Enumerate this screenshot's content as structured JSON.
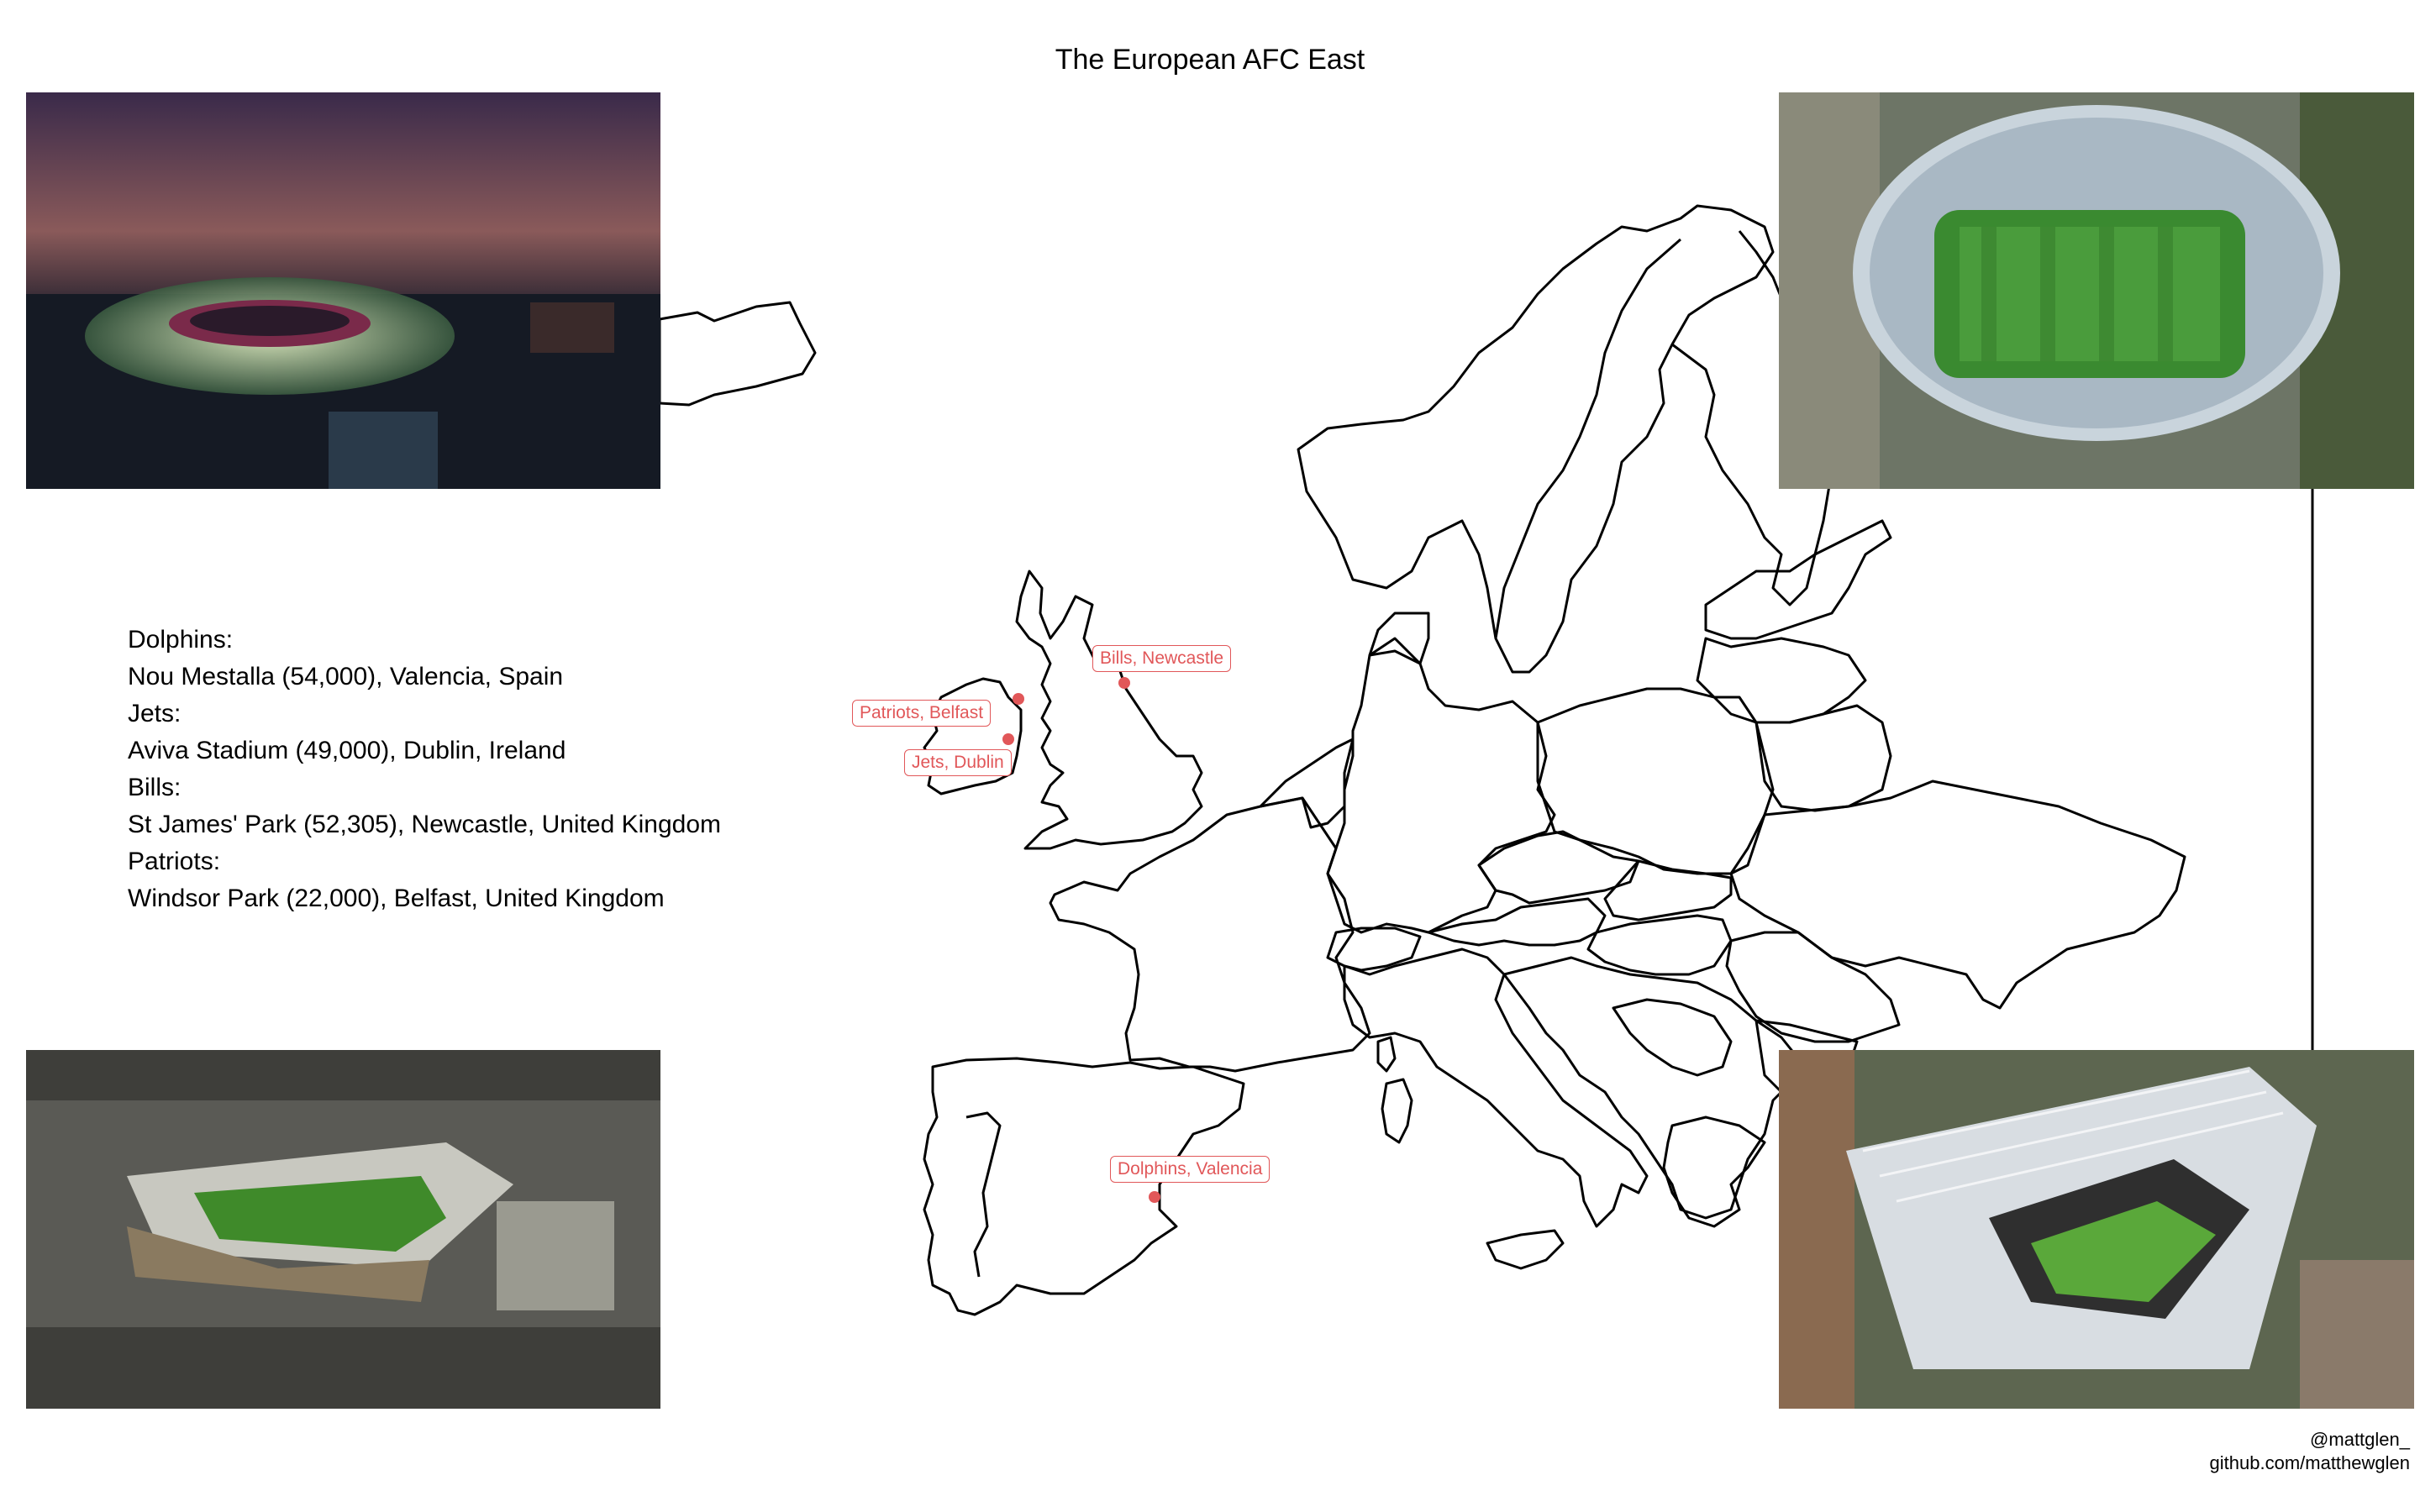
{
  "title": "The European AFC East",
  "stadiums": [
    {
      "team": "Dolphins:",
      "detail": "Nou Mestalla (54,000), Valencia, Spain"
    },
    {
      "team": "Jets:",
      "detail": "Aviva Stadium (49,000), Dublin, Ireland"
    },
    {
      "team": "Bills:",
      "detail": "St James' Park (52,305), Newcastle, United Kingdom"
    },
    {
      "team": "Patriots:",
      "detail": "Windsor Park (22,000), Belfast, United Kingdom"
    }
  ],
  "markers": [
    {
      "label": "Bills, Newcastle"
    },
    {
      "label": "Patriots, Belfast"
    },
    {
      "label": "Jets, Dublin"
    },
    {
      "label": "Dolphins, Valencia"
    }
  ],
  "credit": {
    "handle": "@mattglen_",
    "github": "github.com/matthewglen"
  },
  "colors": {
    "marker": "#e15759",
    "map_outline": "#000000",
    "background": "#ffffff"
  },
  "photos": [
    {
      "name": "Nou Mestalla stadium",
      "position": "top-left"
    },
    {
      "name": "Aviva Stadium",
      "position": "top-right"
    },
    {
      "name": "Windsor Park stadium",
      "position": "bottom-left"
    },
    {
      "name": "St James' Park stadium",
      "position": "bottom-right"
    }
  ]
}
